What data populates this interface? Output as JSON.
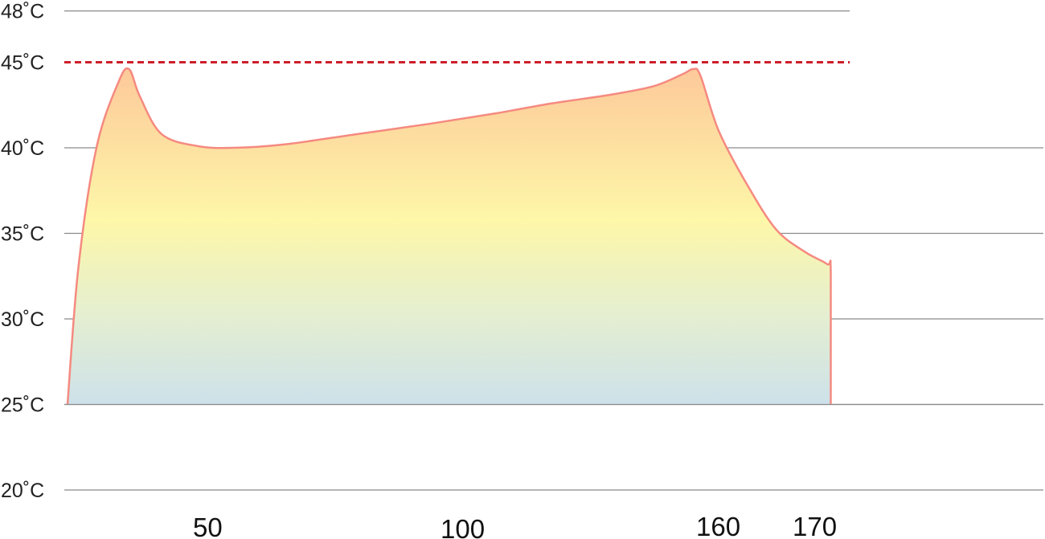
{
  "chart_data": {
    "type": "area",
    "title": "",
    "xlabel": "",
    "ylabel": "",
    "y_ticks": [
      "20˚C",
      "25˚C",
      "30˚C",
      "35˚C",
      "40˚C",
      "45˚C",
      "48˚C"
    ],
    "y_tick_values": [
      20,
      25,
      30,
      35,
      40,
      45,
      48
    ],
    "x_tick_labels": [
      "50",
      "100",
      "160",
      "170"
    ],
    "ylim": [
      20,
      48
    ],
    "baseline": 25,
    "threshold": {
      "value": 45,
      "color": "#cc1f2a",
      "style": "dashed"
    },
    "grid": true,
    "series": [
      {
        "values": [
          {
            "x": 0,
            "y": 25.0
          },
          {
            "x": 3,
            "y": 33.0
          },
          {
            "x": 8,
            "y": 40.0
          },
          {
            "x": 14,
            "y": 43.8
          },
          {
            "x": 17,
            "y": 44.6
          },
          {
            "x": 20,
            "y": 43.0
          },
          {
            "x": 26,
            "y": 40.8
          },
          {
            "x": 36,
            "y": 40.1
          },
          {
            "x": 46,
            "y": 40.0
          },
          {
            "x": 60,
            "y": 40.2
          },
          {
            "x": 80,
            "y": 40.8
          },
          {
            "x": 100,
            "y": 41.4
          },
          {
            "x": 118,
            "y": 42.0
          },
          {
            "x": 134,
            "y": 42.6
          },
          {
            "x": 150,
            "y": 43.1
          },
          {
            "x": 162,
            "y": 43.6
          },
          {
            "x": 170,
            "y": 44.3
          },
          {
            "x": 173,
            "y": 44.6
          },
          {
            "x": 175,
            "y": 44.2
          },
          {
            "x": 180,
            "y": 41.0
          },
          {
            "x": 188,
            "y": 37.8
          },
          {
            "x": 196,
            "y": 35.2
          },
          {
            "x": 204,
            "y": 33.9
          },
          {
            "x": 210,
            "y": 33.2
          },
          {
            "x": 211,
            "y": 32.7
          },
          {
            "x": 211,
            "y": 25.0
          }
        ],
        "stroke_color": "#f58a80",
        "fill_colors": [
          "#fdc99a",
          "#fdf7a8",
          "#e6efcf",
          "#cde1ea"
        ]
      }
    ]
  }
}
